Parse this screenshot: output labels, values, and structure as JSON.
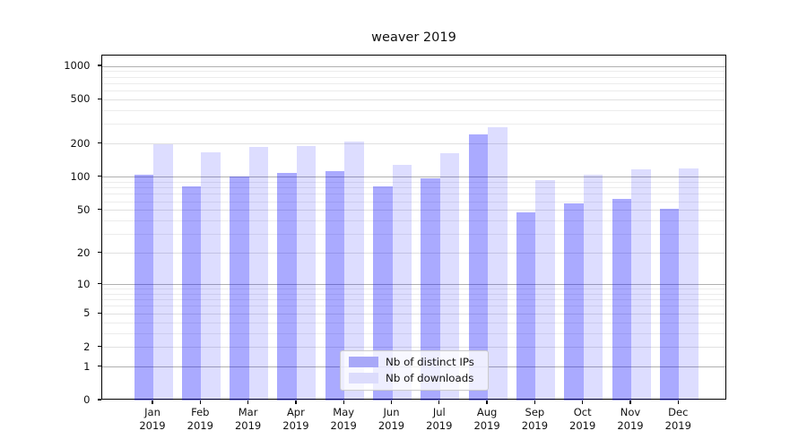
{
  "chart_data": {
    "type": "bar",
    "title": "weaver 2019",
    "categories": [
      "Jan 2019",
      "Feb 2019",
      "Mar 2019",
      "Apr 2019",
      "May 2019",
      "Jun 2019",
      "Jul 2019",
      "Aug 2019",
      "Sep 2019",
      "Oct 2019",
      "Nov 2019",
      "Dec 2019"
    ],
    "x_tick_line1": [
      "Jan",
      "Feb",
      "Mar",
      "Apr",
      "May",
      "Jun",
      "Jul",
      "Aug",
      "Sep",
      "Oct",
      "Nov",
      "Dec"
    ],
    "x_tick_line2": [
      "2019",
      "2019",
      "2019",
      "2019",
      "2019",
      "2019",
      "2019",
      "2019",
      "2019",
      "2019",
      "2019",
      "2019"
    ],
    "series": [
      {
        "name": "Nb of distinct IPs",
        "values": [
          106,
          83,
          102,
          110,
          114,
          82,
          97,
          244,
          48,
          58,
          63,
          52
        ]
      },
      {
        "name": "Nb of downloads",
        "values": [
          198,
          167,
          188,
          190,
          212,
          129,
          164,
          284,
          94,
          105,
          119,
          120
        ]
      }
    ],
    "yticks": [
      0,
      1,
      2,
      5,
      10,
      20,
      50,
      100,
      200,
      500,
      1000
    ],
    "minor_gridline_values": [
      3,
      4,
      6,
      7,
      8,
      9,
      30,
      40,
      60,
      70,
      80,
      90,
      300,
      400,
      600,
      700,
      800,
      900
    ],
    "y_scale": "log10(value+1)",
    "ylim": [
      0,
      1250
    ],
    "grid": true,
    "legend_position": "lower center"
  },
  "colors": {
    "ips_bar": "#a8a8f8",
    "downloads_bar": "#dcdcfc",
    "grid_decade": "#b0b0b0",
    "grid_light": "#e0e0e0",
    "grid_minor": "#ececec"
  }
}
